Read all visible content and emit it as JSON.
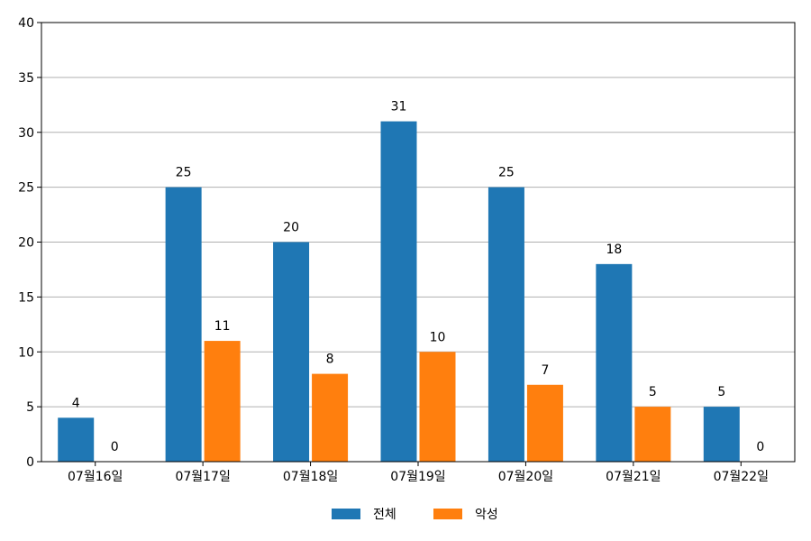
{
  "chart_data": {
    "type": "bar",
    "categories": [
      "07월16일",
      "07월17일",
      "07월18일",
      "07월19일",
      "07월20일",
      "07월21일",
      "07월22일"
    ],
    "series": [
      {
        "name": "전체",
        "values": [
          4,
          25,
          20,
          31,
          25,
          18,
          5
        ],
        "color": "#1f77b4"
      },
      {
        "name": "악성",
        "values": [
          0,
          11,
          8,
          10,
          7,
          5,
          0
        ],
        "color": "#ff7f0e"
      }
    ],
    "ylim": [
      0,
      40
    ],
    "yticks": [
      0,
      5,
      10,
      15,
      20,
      25,
      30,
      35,
      40
    ],
    "grid": "horizontal",
    "legend_position": "bottom-center",
    "show_value_labels": true
  }
}
